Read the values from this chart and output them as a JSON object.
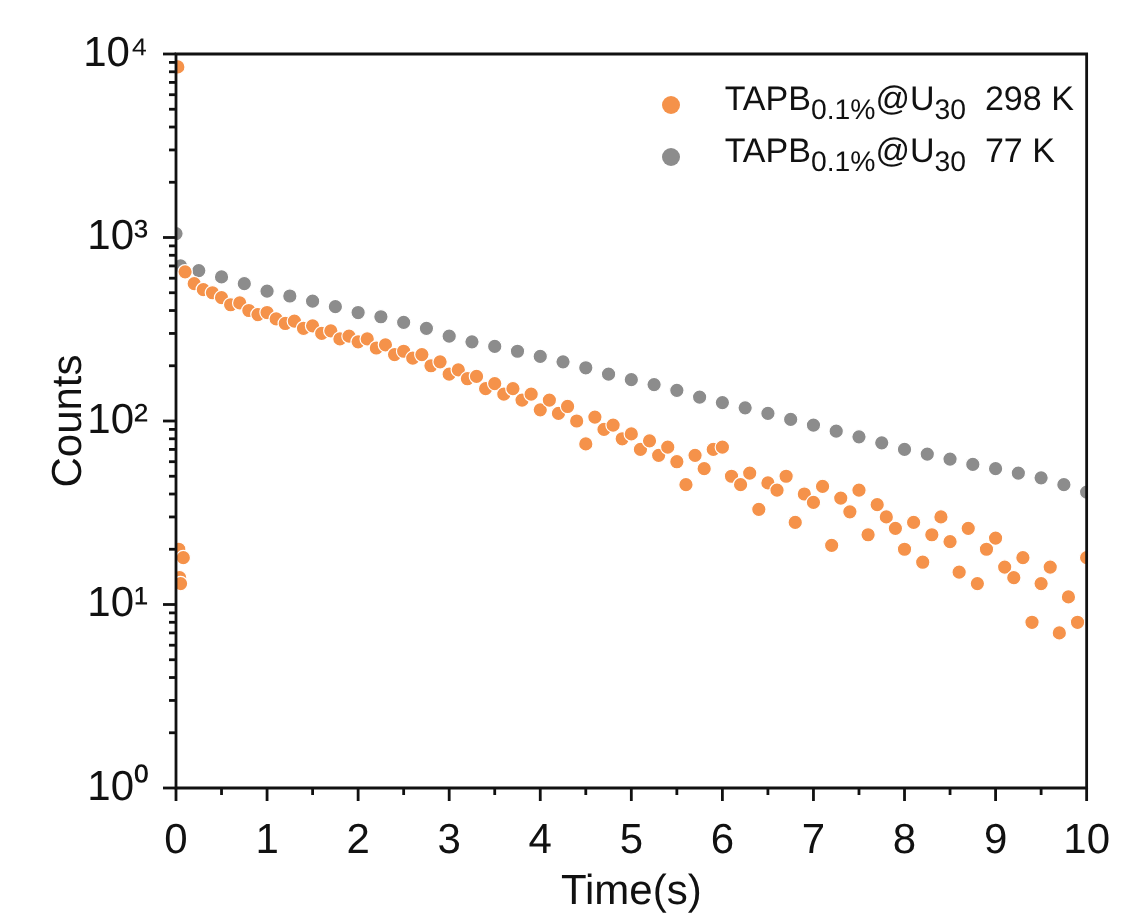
{
  "chart_data": {
    "type": "scatter",
    "xlabel": "Time(s)",
    "ylabel": "Counts",
    "log": "y",
    "grid": false,
    "legend": "top right",
    "marker": "circle",
    "xlim": [
      0,
      10
    ],
    "ylim": [
      1,
      10000
    ],
    "xticks": [
      0,
      {
        "value": 0.5,
        "label": null
      },
      1,
      {
        "value": 1.5,
        "label": null
      },
      2,
      {
        "value": 2.5,
        "label": null
      },
      3,
      {
        "value": 3.5,
        "label": null
      },
      4,
      {
        "value": 4.5,
        "label": null
      },
      5,
      {
        "value": 5.5,
        "label": null
      },
      6,
      {
        "value": 6.5,
        "label": null
      },
      7,
      {
        "value": 7.5,
        "label": null
      },
      8,
      {
        "value": 8.5,
        "label": null
      },
      9,
      {
        "value": 9.5,
        "label": null
      },
      10
    ],
    "yticks": [
      {
        "value": 1,
        "label": "10⁰"
      },
      {
        "value": 2,
        "label": null
      },
      {
        "value": 3,
        "label": null
      },
      {
        "value": 4,
        "label": null
      },
      {
        "value": 5,
        "label": null
      },
      {
        "value": 6,
        "label": null
      },
      {
        "value": 7,
        "label": null
      },
      {
        "value": 8,
        "label": null
      },
      {
        "value": 9,
        "label": null
      },
      {
        "value": 10,
        "label": "10¹"
      },
      {
        "value": 20,
        "label": null
      },
      {
        "value": 30,
        "label": null
      },
      {
        "value": 40,
        "label": null
      },
      {
        "value": 50,
        "label": null
      },
      {
        "value": 60,
        "label": null
      },
      {
        "value": 70,
        "label": null
      },
      {
        "value": 80,
        "label": null
      },
      {
        "value": 90,
        "label": null
      },
      {
        "value": 100,
        "label": "10²"
      },
      {
        "value": 200,
        "label": null
      },
      {
        "value": 300,
        "label": null
      },
      {
        "value": 400,
        "label": null
      },
      {
        "value": 500,
        "label": null
      },
      {
        "value": 600,
        "label": null
      },
      {
        "value": 700,
        "label": null
      },
      {
        "value": 800,
        "label": null
      },
      {
        "value": 900,
        "label": null
      },
      {
        "value": 1000,
        "label": "10³"
      },
      {
        "value": 2000,
        "label": null
      },
      {
        "value": 3000,
        "label": null
      },
      {
        "value": 4000,
        "label": null
      },
      {
        "value": 5000,
        "label": null
      },
      {
        "value": 6000,
        "label": null
      },
      {
        "value": 7000,
        "label": null
      },
      {
        "value": 8000,
        "label": null
      },
      {
        "value": 9000,
        "label": null
      },
      {
        "value": 10000,
        "label": "10⁴"
      }
    ],
    "series": [
      {
        "name": "TAPB$_{0.1%}$@U$_{30}$  298 K",
        "color": "#f5924a",
        "x": [
          0.02,
          0.03,
          0.04,
          0.05,
          0.08,
          0.1,
          0.2,
          0.3,
          0.4,
          0.5,
          0.6,
          0.7,
          0.8,
          0.9,
          1.0,
          1.1,
          1.2,
          1.3,
          1.4,
          1.5,
          1.6,
          1.7,
          1.8,
          1.9,
          2.0,
          2.1,
          2.2,
          2.3,
          2.4,
          2.5,
          2.6,
          2.7,
          2.8,
          2.9,
          3.0,
          3.1,
          3.2,
          3.3,
          3.4,
          3.5,
          3.6,
          3.7,
          3.8,
          3.9,
          4.0,
          4.1,
          4.2,
          4.3,
          4.4,
          4.5,
          4.6,
          4.7,
          4.8,
          4.9,
          5.0,
          5.1,
          5.2,
          5.3,
          5.4,
          5.5,
          5.6,
          5.7,
          5.8,
          5.9,
          6.0,
          6.1,
          6.2,
          6.3,
          6.4,
          6.5,
          6.6,
          6.7,
          6.8,
          6.9,
          7.0,
          7.1,
          7.2,
          7.3,
          7.4,
          7.5,
          7.6,
          7.7,
          7.8,
          7.9,
          8.0,
          8.1,
          8.2,
          8.3,
          8.4,
          8.5,
          8.6,
          8.7,
          8.8,
          8.9,
          9.0,
          9.1,
          9.2,
          9.3,
          9.4,
          9.5,
          9.6,
          9.7,
          9.8,
          9.9,
          10.0
        ],
        "values": [
          8500,
          20,
          14,
          13,
          18,
          650,
          560,
          520,
          500,
          470,
          430,
          440,
          400,
          380,
          390,
          360,
          340,
          350,
          320,
          330,
          300,
          310,
          280,
          290,
          270,
          280,
          250,
          260,
          230,
          240,
          220,
          230,
          200,
          210,
          180,
          190,
          170,
          175,
          150,
          160,
          140,
          150,
          130,
          140,
          115,
          130,
          110,
          120,
          100,
          75,
          105,
          90,
          95,
          80,
          85,
          70,
          78,
          65,
          72,
          60,
          45,
          65,
          55,
          70,
          72,
          50,
          45,
          52,
          33,
          46,
          42,
          50,
          28,
          40,
          36,
          44,
          21,
          38,
          32,
          42,
          24,
          35,
          30,
          26,
          20,
          28,
          17,
          24,
          30,
          22,
          15,
          26,
          13,
          20,
          23,
          16,
          14,
          18,
          8,
          13,
          16,
          7,
          11,
          8,
          18
        ]
      },
      {
        "name": "TAPB$_{0.1%}$@U$_{30}$  77 K",
        "color": "#8c8c8c",
        "x": [
          0,
          0.05,
          0.25,
          0.5,
          0.75,
          1,
          1.25,
          1.5,
          1.75,
          2,
          2.25,
          2.5,
          2.75,
          3,
          3.25,
          3.5,
          3.75,
          4,
          4.25,
          4.5,
          4.75,
          5,
          5.25,
          5.5,
          5.75,
          6,
          6.25,
          6.5,
          6.75,
          7,
          7.25,
          7.5,
          7.75,
          8,
          8.25,
          8.5,
          8.75,
          9,
          9.25,
          9.5,
          9.75,
          10
        ],
        "values": [
          1050,
          700,
          660,
          610,
          560,
          510,
          480,
          450,
          420,
          390,
          370,
          345,
          320,
          290,
          270,
          255,
          240,
          225,
          210,
          195,
          180,
          168,
          158,
          147,
          135,
          126,
          118,
          110,
          102,
          95,
          88,
          82,
          76,
          70,
          66,
          62,
          58,
          55,
          52,
          49,
          45,
          41
        ]
      }
    ]
  }
}
